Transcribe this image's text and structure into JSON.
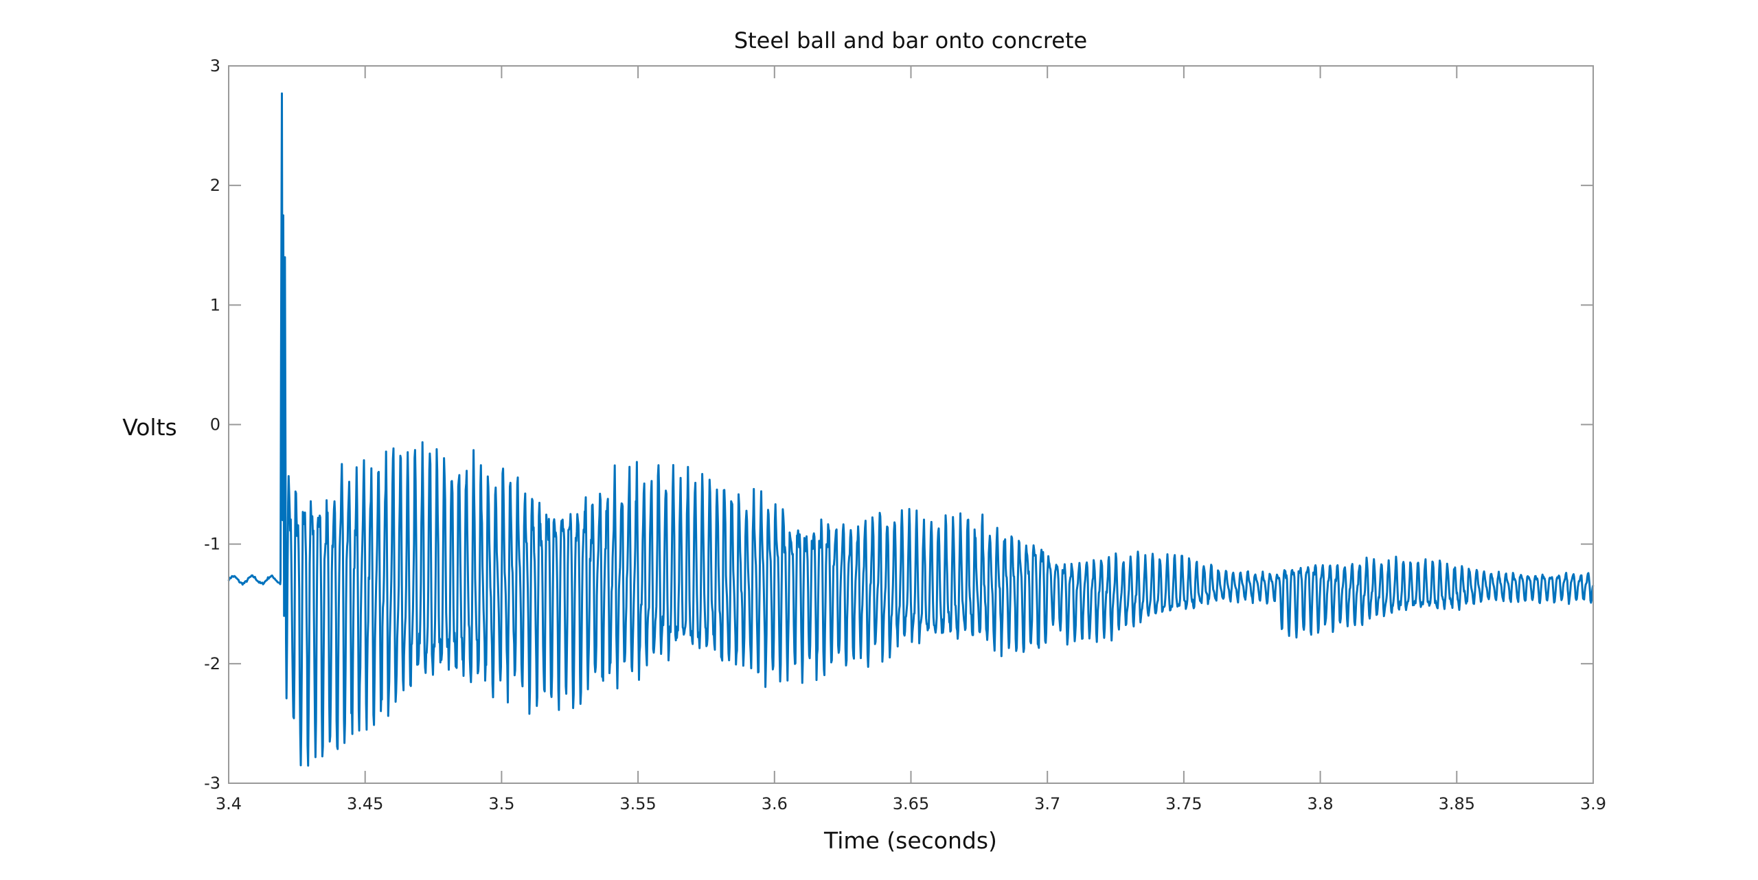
{
  "chart_data": {
    "type": "line",
    "title": "Steel ball and bar onto concrete",
    "xlabel": "Time (seconds)",
    "ylabel": "Volts",
    "xlim": [
      3.4,
      3.9
    ],
    "ylim": [
      -3,
      3
    ],
    "xticks": [
      "3.4",
      "3.45",
      "3.5",
      "3.55",
      "3.6",
      "3.65",
      "3.7",
      "3.75",
      "3.8",
      "3.85",
      "3.9"
    ],
    "yticks": [
      "3",
      "2",
      "1",
      "0",
      "-1",
      "-2",
      "-3"
    ],
    "grid": false,
    "line_color": "#0072BD",
    "series": [
      {
        "baseline_before_impact": -1.3,
        "impact_time": 3.419,
        "peak_value": 2.77,
        "envelope": {
          "t": [
            3.421,
            3.43,
            3.45,
            3.5,
            3.55,
            3.6,
            3.65,
            3.7,
            3.701,
            3.71,
            3.75,
            3.765,
            3.785,
            3.786,
            3.8,
            3.85,
            3.86,
            3.9
          ],
          "upper": [
            0.05,
            0.0,
            -0.05,
            -0.25,
            -0.3,
            -0.45,
            -0.7,
            -0.8,
            -1.0,
            -1.0,
            -1.1,
            -1.2,
            -1.2,
            -1.0,
            -1.05,
            -1.15,
            -1.2,
            -1.2
          ],
          "lower": [
            -2.7,
            -2.95,
            -2.7,
            -2.45,
            -2.3,
            -2.2,
            -2.05,
            -1.95,
            -1.7,
            -1.9,
            -1.65,
            -1.5,
            -1.5,
            -1.8,
            -1.75,
            -1.6,
            -1.5,
            -1.5
          ]
        }
      }
    ]
  }
}
